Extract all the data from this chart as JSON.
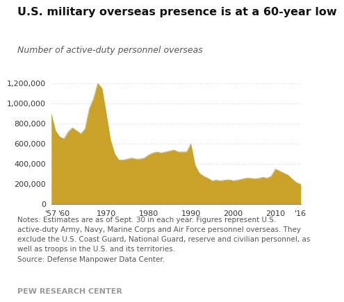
{
  "title": "U.S. military overseas presence is at a 60-year low",
  "subtitle": "Number of active-duty personnel overseas",
  "fill_color": "#C9A227",
  "background_color": "#ffffff",
  "notes_line1": "Notes: Estimates are as of Sept. 30 in each year. Figures represent U.S.",
  "notes_line2": "active-duty Army, Navy, Marine Corps and Air Force personnel overseas. They",
  "notes_line3": "exclude the U.S. Coast Guard, National Guard, reserve and civilian personnel, as",
  "notes_line4": "well as troops in the U.S. and its territories.",
  "notes_line5": "Source: Defense Manpower Data Center.",
  "source_label": "PEW RESEARCH CENTER",
  "years": [
    1957,
    1958,
    1959,
    1960,
    1961,
    1962,
    1963,
    1964,
    1965,
    1966,
    1967,
    1968,
    1969,
    1970,
    1971,
    1972,
    1973,
    1974,
    1975,
    1976,
    1977,
    1978,
    1979,
    1980,
    1981,
    1982,
    1983,
    1984,
    1985,
    1986,
    1987,
    1988,
    1989,
    1990,
    1991,
    1992,
    1993,
    1994,
    1995,
    1996,
    1997,
    1998,
    1999,
    2000,
    2001,
    2002,
    2003,
    2004,
    2005,
    2006,
    2007,
    2008,
    2009,
    2010,
    2011,
    2012,
    2013,
    2014,
    2015,
    2016
  ],
  "values": [
    900000,
    730000,
    670000,
    650000,
    720000,
    760000,
    730000,
    700000,
    750000,
    950000,
    1050000,
    1200000,
    1150000,
    900000,
    640000,
    500000,
    440000,
    440000,
    450000,
    460000,
    450000,
    450000,
    460000,
    490000,
    510000,
    520000,
    510000,
    520000,
    530000,
    540000,
    520000,
    520000,
    520000,
    600000,
    390000,
    310000,
    280000,
    260000,
    235000,
    240000,
    235000,
    240000,
    245000,
    235000,
    240000,
    250000,
    260000,
    260000,
    255000,
    258000,
    270000,
    260000,
    280000,
    350000,
    330000,
    310000,
    290000,
    250000,
    215000,
    200000
  ],
  "yticks": [
    0,
    200000,
    400000,
    600000,
    800000,
    1000000,
    1200000
  ],
  "ylim": [
    0,
    1320000
  ],
  "xtick_labels": [
    "'57",
    "'60",
    "",
    "1970",
    "",
    "1980",
    "",
    "1990",
    "",
    "2000",
    "",
    "2010",
    "'16"
  ],
  "xtick_positions": [
    1957,
    1960,
    1965,
    1970,
    1975,
    1980,
    1985,
    1990,
    1995,
    2000,
    2005,
    2010,
    2016
  ],
  "title_fontsize": 11.5,
  "subtitle_fontsize": 9,
  "tick_fontsize": 8,
  "notes_fontsize": 7.5
}
